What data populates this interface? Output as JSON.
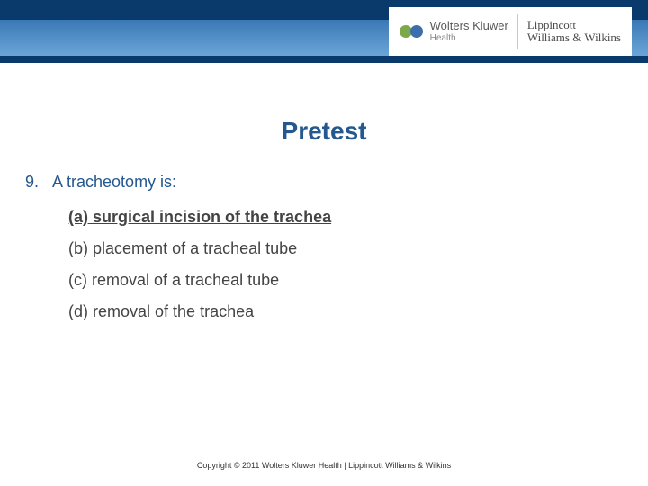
{
  "header": {
    "brand_left": {
      "name": "Wolters Kluwer",
      "sub": "Health"
    },
    "brand_right": {
      "line1": "Lippincott",
      "line2": "Williams & Wilkins"
    },
    "colors": {
      "band_top": "#0a3a6b",
      "band_mid_from": "#3a78b5",
      "band_mid_to": "#6ba5d8",
      "band_bot": "#0a3a6b"
    }
  },
  "title": {
    "text": "Pretest",
    "color": "#24588e",
    "fontsize": 28
  },
  "question": {
    "number": "9.",
    "stem": "A tracheotomy is:",
    "stem_color": "#24588e",
    "options": [
      {
        "label": "(a)",
        "text": "surgical incision of the trachea",
        "correct": true
      },
      {
        "label": "(b)",
        "text": "placement of a tracheal tube",
        "correct": false
      },
      {
        "label": "(c)",
        "text": "removal of a tracheal tube",
        "correct": false
      },
      {
        "label": "(d)",
        "text": "removal of the trachea",
        "correct": false
      }
    ],
    "option_color": "#444444"
  },
  "footer": {
    "text": "Copyright © 2011 Wolters Kluwer Health | Lippincott Williams & Wilkins"
  }
}
